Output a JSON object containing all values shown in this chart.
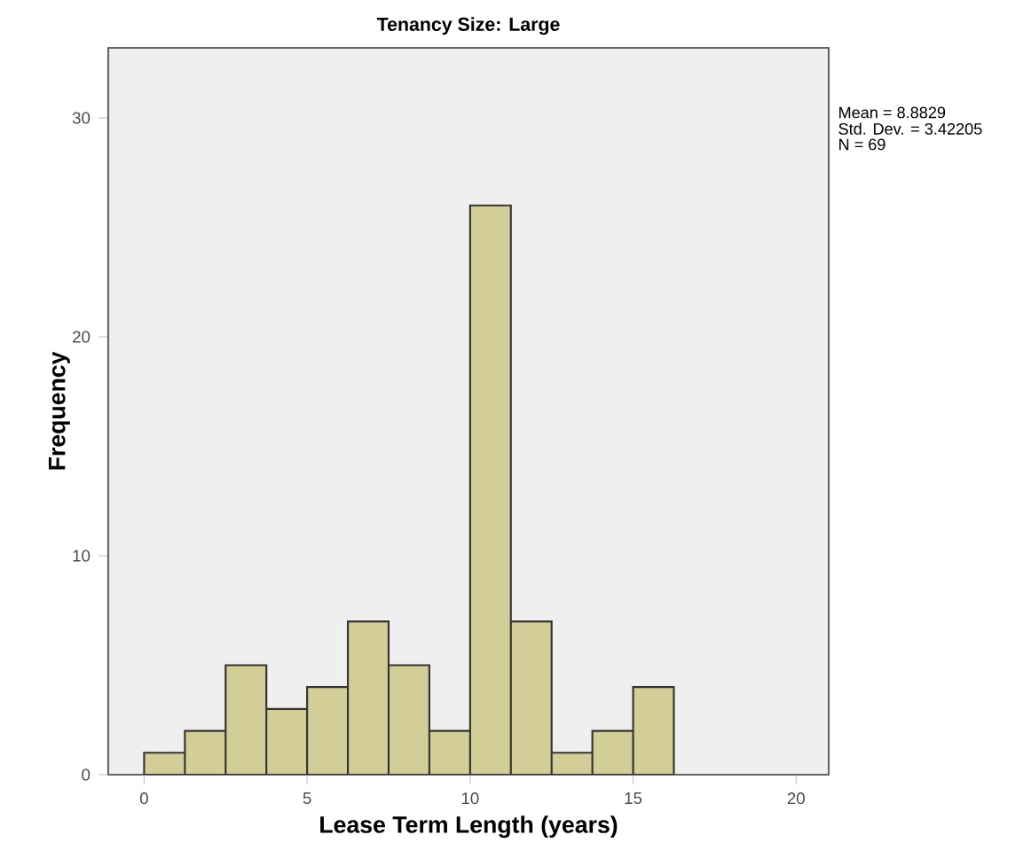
{
  "chart_data": {
    "type": "histogram",
    "title": "Tenancy Size: Large",
    "xlabel": "Lease Term Length (years)",
    "ylabel": "Frequency",
    "bins": [
      0,
      1.25,
      2.5,
      3.75,
      5,
      6.25,
      7.5,
      8.75,
      10,
      11.25,
      12.5,
      13.75,
      15,
      16.25
    ],
    "values": [
      1,
      2,
      5,
      3,
      4,
      7,
      5,
      2,
      26,
      7,
      1,
      2,
      4
    ],
    "color": "#d3cd98",
    "xlim": [
      -1.1,
      21
    ],
    "ylim": [
      0,
      33.2
    ],
    "xticks": [
      0,
      5,
      10,
      15,
      20
    ],
    "yticks": [
      0,
      10,
      20,
      30
    ],
    "grid": false,
    "annotations": [
      "Mean = 8.8829",
      "Std. Dev. = 3.42205",
      "N = 69"
    ]
  }
}
